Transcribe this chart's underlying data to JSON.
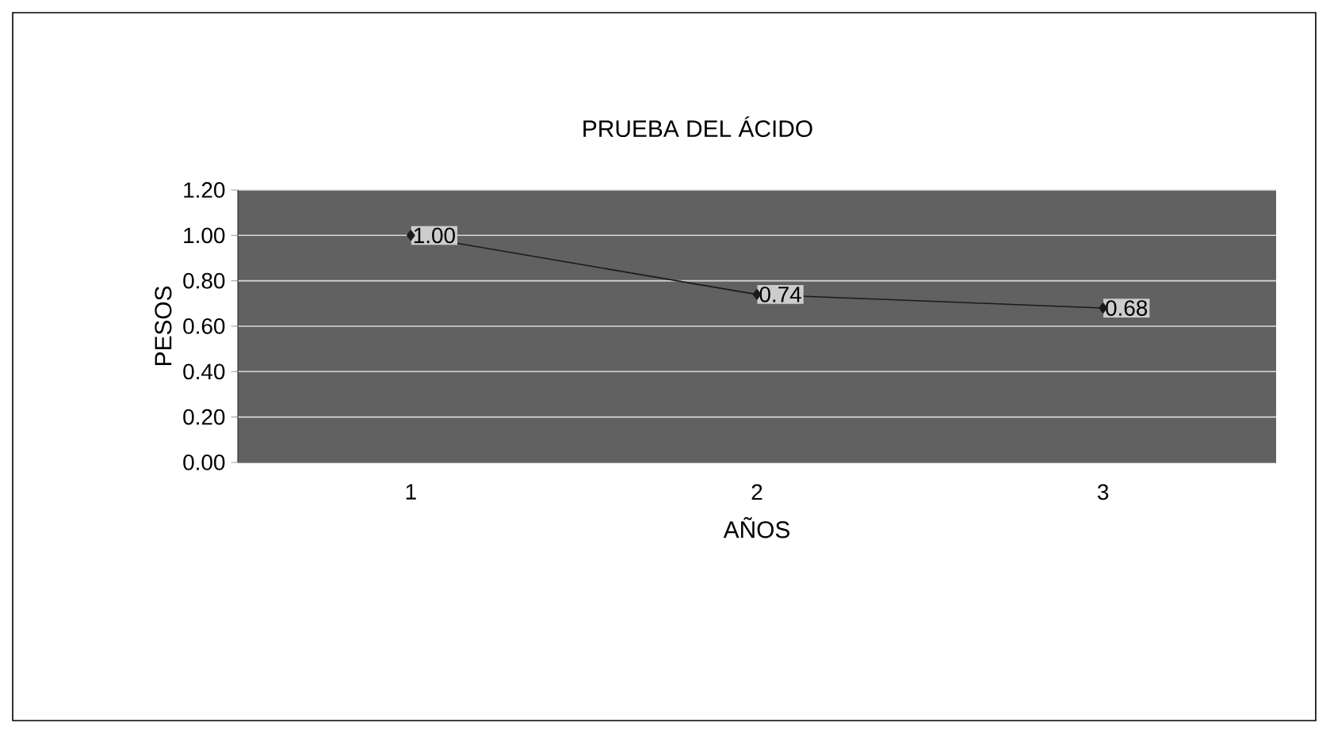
{
  "chart_data": {
    "type": "line",
    "title": "PRUEBA DEL ÁCIDO",
    "xlabel": "AÑOS",
    "ylabel": "PESOS",
    "categories": [
      "1",
      "2",
      "3"
    ],
    "series": [
      {
        "color": "#1a1a1a",
        "values": [
          1.0,
          0.74,
          0.68
        ],
        "value_labels": [
          "1.00",
          "0.74",
          "0.68"
        ]
      }
    ],
    "ylim": [
      0,
      1.2
    ],
    "yticks": [
      {
        "value": 0,
        "label": "0.00"
      },
      {
        "value": 0.2,
        "label": "0.20"
      },
      {
        "value": 0.4,
        "label": "0.40"
      },
      {
        "value": 0.6,
        "label": "0.60"
      },
      {
        "value": 0.8,
        "label": "0.80"
      },
      {
        "value": 1.0,
        "label": "1.00"
      },
      {
        "value": 1.2,
        "label": "1.20"
      }
    ],
    "grid": "y",
    "marker": "diamond",
    "line_style": "solid"
  }
}
